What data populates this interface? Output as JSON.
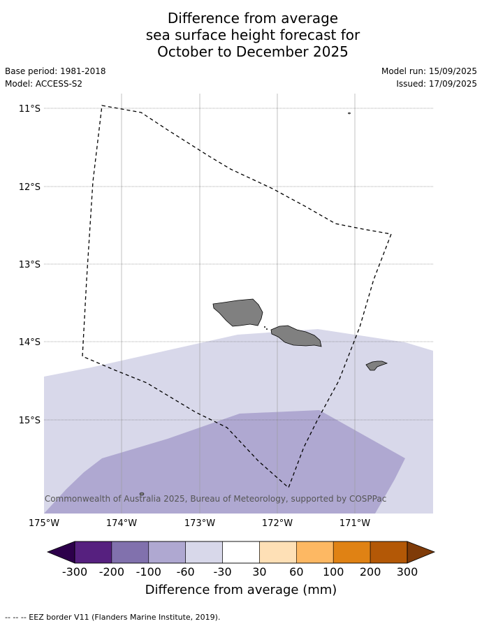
{
  "title_lines": [
    "Difference from average",
    "sea surface height forecast for",
    "October to December 2025"
  ],
  "info": {
    "base_period": "Base period: 1981-2018",
    "model": "Model: ACCESS-S2",
    "model_run": "Model run: 15/09/2025",
    "issued": "Issued: 17/09/2025"
  },
  "map": {
    "lat_labels": [
      "11°S",
      "12°S",
      "13°S",
      "14°S",
      "15°S"
    ],
    "lon_labels": [
      "175°W",
      "174°W",
      "173°W",
      "172°W",
      "171°W"
    ],
    "lat_values": [
      -11,
      -12,
      -13,
      -14,
      -15
    ],
    "lon_values": [
      -175,
      -174,
      -173,
      -172,
      -171
    ],
    "copyright": "© Commonwealth of Australia 2025, Bureau of Meteorology, supported by COSPPac"
  },
  "colorbar": {
    "tick_labels": [
      "-300",
      "-200",
      "-100",
      "-60",
      "-30",
      "30",
      "60",
      "100",
      "200",
      "300"
    ],
    "colors": [
      "#56207f",
      "#8171ad",
      "#afa8d1",
      "#d8d8ea",
      "#ffffff",
      "#fee0b6",
      "#fdb863",
      "#e08214",
      "#b35806"
    ],
    "extend_low_color": "#2d004b",
    "extend_high_color": "#7f3b08",
    "title": "Difference from average (mm)"
  },
  "footnote": "--  --  -- EEZ border V11 (Flanders Marine Institute, 2019)."
}
